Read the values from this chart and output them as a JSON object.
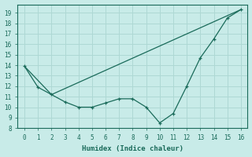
{
  "xlabel": "Humidex (Indice chaleur)",
  "background_color": "#c8ebe8",
  "grid_color": "#aed8d4",
  "line_color": "#1a6b5a",
  "series1_x": [
    0,
    1,
    2,
    3,
    4,
    5,
    6,
    7,
    8,
    9,
    10,
    11,
    12,
    13,
    14,
    15,
    16
  ],
  "series1_y": [
    13.9,
    11.9,
    11.2,
    10.5,
    10.0,
    10.0,
    10.4,
    10.8,
    10.8,
    10.0,
    8.5,
    9.4,
    12.0,
    14.7,
    16.5,
    18.5,
    19.3
  ],
  "series2_x": [
    0,
    2,
    16
  ],
  "series2_y": [
    13.9,
    11.2,
    19.3
  ],
  "xlim": [
    -0.5,
    16.5
  ],
  "ylim": [
    8,
    19.8
  ],
  "yticks": [
    8,
    9,
    10,
    11,
    12,
    13,
    14,
    15,
    16,
    17,
    18,
    19
  ],
  "xticks": [
    0,
    1,
    2,
    3,
    4,
    5,
    6,
    7,
    8,
    9,
    10,
    11,
    12,
    13,
    14,
    15,
    16
  ]
}
